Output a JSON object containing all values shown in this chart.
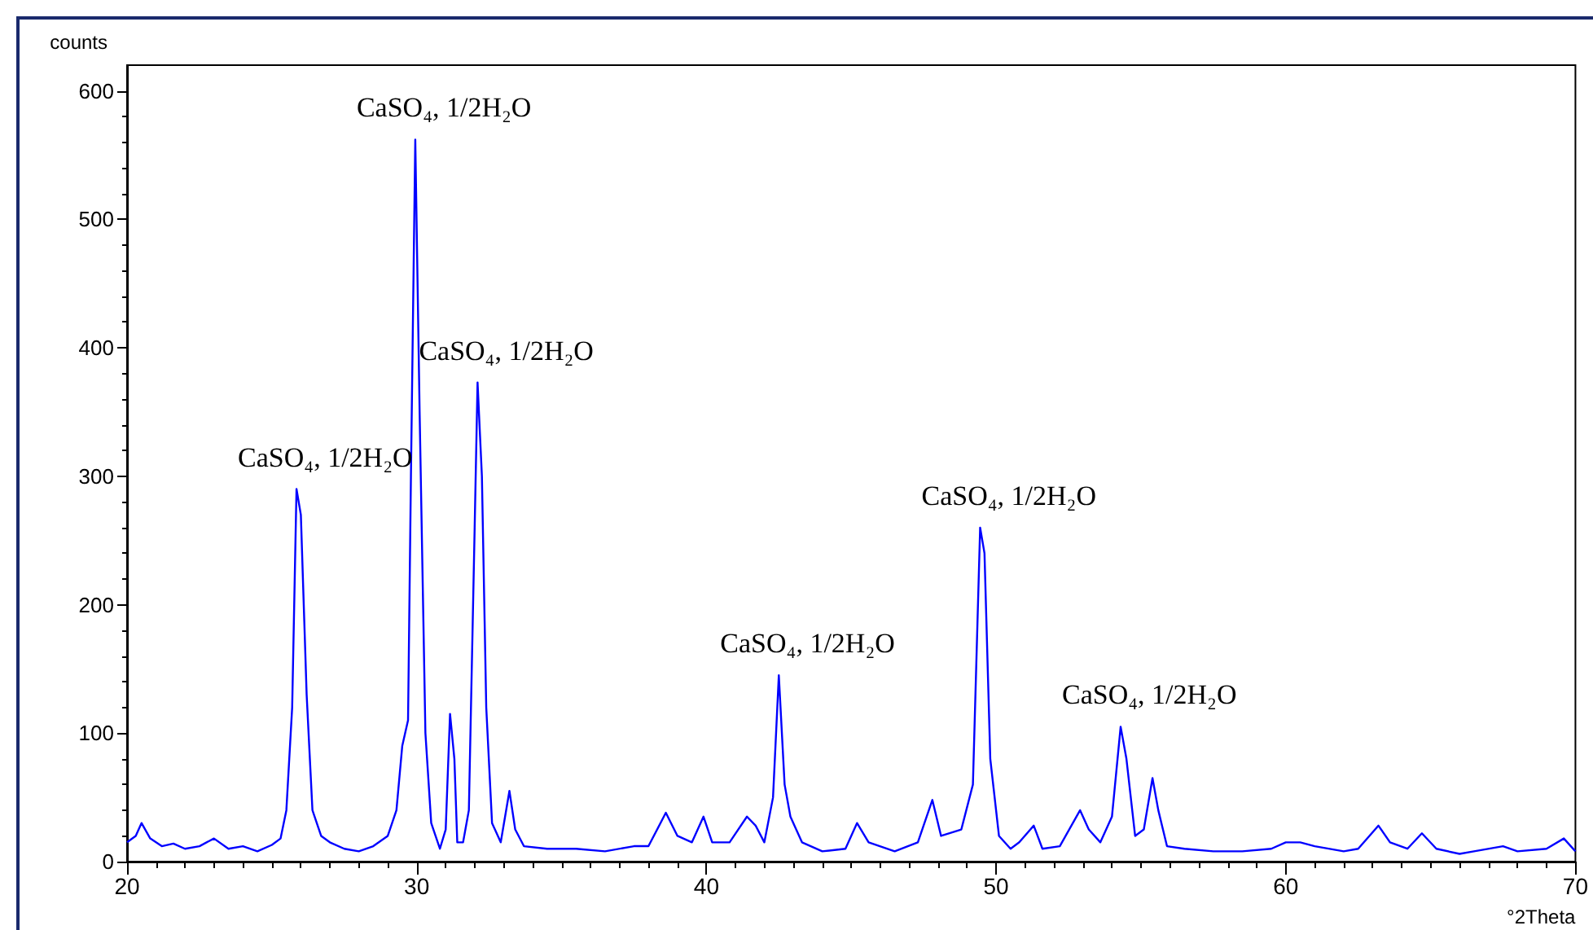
{
  "chart_data": {
    "type": "line",
    "xlabel": "°2Theta",
    "ylabel": "counts",
    "xlim": [
      20,
      70
    ],
    "xticks": [
      20,
      30,
      40,
      50,
      60,
      70
    ],
    "ylim": [
      0,
      620
    ],
    "yticks": [
      0,
      100,
      200,
      300,
      400,
      500,
      600
    ],
    "grid": false,
    "marker": "none",
    "line_style": "solid",
    "series": [
      {
        "color": "#0000ff",
        "x": [
          20.0,
          20.3,
          20.5,
          20.8,
          21.2,
          21.6,
          22.0,
          22.5,
          23.0,
          23.5,
          24.0,
          24.5,
          25.0,
          25.3,
          25.5,
          25.7,
          25.85,
          26.0,
          26.2,
          26.4,
          26.7,
          27.0,
          27.5,
          28.0,
          28.5,
          29.0,
          29.3,
          29.5,
          29.7,
          29.8,
          29.95,
          30.1,
          30.3,
          30.5,
          30.8,
          31.0,
          31.15,
          31.3,
          31.4,
          31.6,
          31.8,
          32.0,
          32.1,
          32.25,
          32.4,
          32.6,
          32.9,
          33.2,
          33.4,
          33.7,
          34.5,
          35.5,
          36.5,
          37.5,
          38.0,
          38.6,
          39.0,
          39.5,
          39.9,
          40.2,
          40.8,
          41.4,
          41.7,
          42.0,
          42.3,
          42.5,
          42.7,
          42.9,
          43.3,
          44.0,
          44.8,
          45.2,
          45.6,
          46.5,
          47.3,
          47.8,
          48.1,
          48.8,
          49.2,
          49.45,
          49.6,
          49.8,
          50.1,
          50.5,
          50.8,
          51.3,
          51.6,
          52.2,
          52.9,
          53.2,
          53.6,
          54.0,
          54.3,
          54.5,
          54.8,
          55.1,
          55.4,
          55.6,
          55.9,
          56.5,
          57.5,
          58.5,
          59.5,
          60.0,
          60.5,
          61.0,
          62.0,
          62.5,
          63.2,
          63.6,
          64.2,
          64.7,
          65.2,
          66.0,
          66.5,
          67.5,
          68.0,
          69.0,
          69.6,
          70.0
        ],
        "values": [
          15,
          20,
          30,
          18,
          12,
          14,
          10,
          12,
          18,
          10,
          12,
          8,
          13,
          18,
          40,
          120,
          290,
          270,
          130,
          40,
          20,
          15,
          10,
          8,
          12,
          20,
          40,
          90,
          110,
          300,
          562,
          350,
          100,
          30,
          10,
          25,
          115,
          80,
          15,
          15,
          40,
          260,
          373,
          300,
          120,
          30,
          15,
          55,
          25,
          12,
          10,
          10,
          8,
          12,
          12,
          38,
          20,
          15,
          35,
          15,
          15,
          35,
          28,
          15,
          50,
          145,
          60,
          35,
          15,
          8,
          10,
          30,
          15,
          8,
          15,
          48,
          20,
          25,
          60,
          260,
          240,
          80,
          20,
          10,
          15,
          28,
          10,
          12,
          40,
          25,
          15,
          35,
          105,
          80,
          20,
          25,
          65,
          40,
          12,
          10,
          8,
          8,
          10,
          15,
          15,
          12,
          8,
          10,
          28,
          15,
          10,
          22,
          10,
          6,
          8,
          12,
          8,
          10,
          18,
          8
        ]
      }
    ],
    "annotations": [
      {
        "text": "CaSO₄, 1/2H₂O",
        "x": 25.85,
        "y": 290
      },
      {
        "text": "CaSO₄, 1/2H₂O",
        "x": 29.95,
        "y": 562
      },
      {
        "text": "CaSO₄, 1/2H₂O",
        "x": 32.1,
        "y": 373
      },
      {
        "text": "CaSO₄, 1/2H₂O",
        "x": 42.5,
        "y": 145
      },
      {
        "text": "CaSO₄, 1/2H₂O",
        "x": 49.45,
        "y": 260
      },
      {
        "text": "CaSO₄, 1/2H₂O",
        "x": 54.3,
        "y": 105
      }
    ]
  }
}
